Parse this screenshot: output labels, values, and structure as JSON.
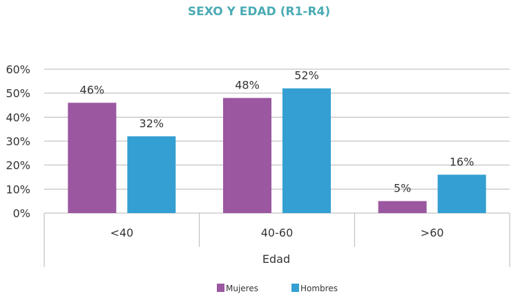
{
  "chart_data": {
    "type": "bar",
    "title": "SEXO Y EDAD (R1-R4)",
    "xlabel": "Edad",
    "ylabel": "",
    "categories": [
      "<40",
      "40-60",
      ">60"
    ],
    "series": [
      {
        "name": "Mujeres",
        "color": "#9b57a0",
        "values": [
          46,
          48,
          5
        ],
        "labels": [
          "46%",
          "48%",
          "5%"
        ]
      },
      {
        "name": "Hombres",
        "color": "#339fd2",
        "values": [
          32,
          52,
          16
        ],
        "labels": [
          "32%",
          "52%",
          "16%"
        ]
      }
    ],
    "ylim": [
      0,
      60
    ],
    "yticks": [
      "0%",
      "10%",
      "20%",
      "30%",
      "40%",
      "50%",
      "60%"
    ],
    "grid": true,
    "legend": "bottom-center"
  }
}
